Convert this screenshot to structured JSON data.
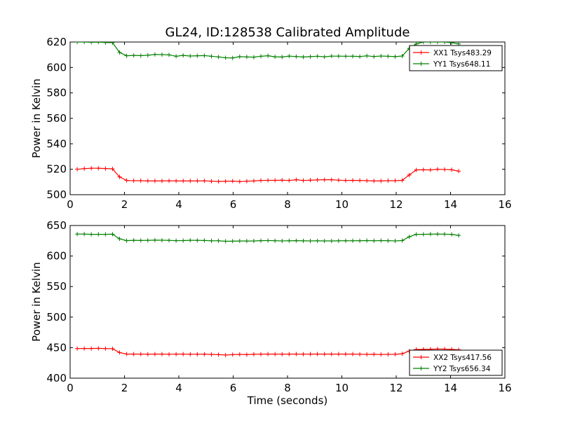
{
  "chart_data": [
    {
      "type": "line",
      "title": "GL24, ID:128538 Calibrated Amplitude",
      "xlabel": "",
      "ylabel": "Power in Kelvin",
      "xlim": [
        0,
        16
      ],
      "ylim": [
        500,
        620
      ],
      "xticks": [
        0,
        2,
        4,
        6,
        8,
        10,
        12,
        14,
        16
      ],
      "yticks": [
        500,
        520,
        540,
        560,
        580,
        600,
        620
      ],
      "legend": "top-right",
      "x": [
        0.26,
        0.52,
        0.78,
        1.04,
        1.3,
        1.56,
        1.82,
        2.08,
        2.34,
        2.6,
        2.86,
        3.12,
        3.38,
        3.64,
        3.9,
        4.16,
        4.42,
        4.68,
        4.94,
        5.2,
        5.46,
        5.72,
        5.98,
        6.24,
        6.5,
        6.76,
        7.02,
        7.28,
        7.54,
        7.8,
        8.06,
        8.32,
        8.58,
        8.84,
        9.1,
        9.36,
        9.62,
        9.88,
        10.14,
        10.4,
        10.66,
        10.92,
        11.18,
        11.44,
        11.7,
        11.96,
        12.22,
        12.48,
        12.74,
        13.0,
        13.26,
        13.52,
        13.78,
        14.04,
        14.3
      ],
      "series": [
        {
          "name": "XX1 Tsys483.29",
          "color": "#ff0000",
          "values": [
            520,
            520.5,
            520.8,
            520.8,
            520.6,
            520.3,
            514,
            511.2,
            511,
            511,
            510.8,
            510.8,
            510.8,
            510.9,
            510.8,
            510.8,
            510.8,
            510.8,
            510.9,
            510.6,
            510.4,
            510.5,
            510.7,
            510.3,
            510.6,
            510.8,
            511.2,
            511.3,
            511.3,
            511.4,
            511.2,
            511.8,
            511.2,
            511.4,
            511.6,
            511.8,
            511.8,
            511.4,
            511.2,
            511.3,
            511.2,
            511.0,
            510.8,
            510.8,
            511.0,
            511.0,
            511.3,
            515.5,
            519.5,
            519.6,
            519.5,
            520.0,
            519.8,
            519.6,
            518.5
          ]
        },
        {
          "name": "YY1 Tsys648.11",
          "color": "#008000",
          "values": [
            620,
            620,
            619.8,
            619.9,
            619.6,
            619.5,
            611.8,
            609.2,
            609.5,
            609.3,
            609.6,
            610.2,
            610.1,
            609.9,
            608.8,
            609.5,
            609.0,
            609.2,
            609.3,
            608.8,
            608.3,
            607.6,
            607.5,
            608.5,
            608.3,
            608.1,
            608.8,
            609.2,
            608.4,
            608.2,
            608.9,
            608.6,
            608.2,
            608.5,
            608.8,
            608.4,
            608.9,
            608.9,
            608.8,
            608.8,
            608.6,
            609.1,
            608.6,
            609.0,
            608.8,
            608.5,
            609.0,
            615.0,
            618.5,
            620,
            620,
            620,
            620,
            619.5,
            618.5
          ]
        }
      ]
    },
    {
      "type": "line",
      "title": "",
      "xlabel": "Time (seconds)",
      "ylabel": "Power in Kelvin",
      "xlim": [
        0,
        16
      ],
      "ylim": [
        400,
        650
      ],
      "xticks": [
        0,
        2,
        4,
        6,
        8,
        10,
        12,
        14,
        16
      ],
      "yticks": [
        400,
        450,
        500,
        550,
        600,
        650
      ],
      "legend": "bottom-right",
      "x": [
        0.26,
        0.52,
        0.78,
        1.04,
        1.3,
        1.56,
        1.82,
        2.08,
        2.34,
        2.6,
        2.86,
        3.12,
        3.38,
        3.64,
        3.9,
        4.16,
        4.42,
        4.68,
        4.94,
        5.2,
        5.46,
        5.72,
        5.98,
        6.24,
        6.5,
        6.76,
        7.02,
        7.28,
        7.54,
        7.8,
        8.06,
        8.32,
        8.58,
        8.84,
        9.1,
        9.36,
        9.62,
        9.88,
        10.14,
        10.4,
        10.66,
        10.92,
        11.18,
        11.44,
        11.7,
        11.96,
        12.22,
        12.48,
        12.74,
        13.0,
        13.26,
        13.52,
        13.78,
        14.04,
        14.3
      ],
      "series": [
        {
          "name": "XX2 Tsys417.56",
          "color": "#ff0000",
          "values": [
            448.5,
            448.6,
            448.6,
            448.8,
            448.5,
            448.2,
            442,
            439.5,
            439.4,
            439.4,
            439.2,
            439.4,
            439.4,
            439.2,
            439.3,
            439.4,
            439.2,
            439.2,
            439.3,
            438.9,
            438.6,
            437.8,
            438.6,
            439.0,
            438.6,
            439.1,
            439.3,
            439.4,
            439.4,
            439.3,
            439.4,
            439.5,
            439.3,
            439.4,
            439.5,
            439.4,
            439.4,
            439.5,
            439.4,
            439.4,
            439.2,
            439.0,
            439.1,
            438.8,
            439.0,
            439.1,
            440.0,
            444.5,
            447.0,
            447.2,
            447.5,
            447.8,
            447.6,
            447.2,
            446.5
          ]
        },
        {
          "name": "YY2 Tsys656.34",
          "color": "#008000",
          "values": [
            636,
            636,
            635.5,
            635.6,
            635.6,
            635.8,
            628.2,
            625.2,
            625.8,
            625.5,
            625.7,
            626.0,
            625.9,
            625.7,
            625.2,
            625.4,
            625.8,
            625.7,
            625.5,
            625.0,
            625.0,
            624.2,
            624.3,
            624.7,
            624.6,
            624.7,
            625.2,
            625.4,
            625.1,
            624.8,
            625.0,
            625.2,
            624.9,
            624.8,
            624.9,
            624.8,
            624.8,
            624.9,
            625.1,
            625.0,
            625.1,
            625.3,
            625.0,
            625.3,
            625.1,
            624.8,
            625.4,
            631.5,
            635.5,
            635.6,
            635.8,
            636.0,
            635.8,
            635.5,
            633.8
          ]
        }
      ]
    }
  ]
}
